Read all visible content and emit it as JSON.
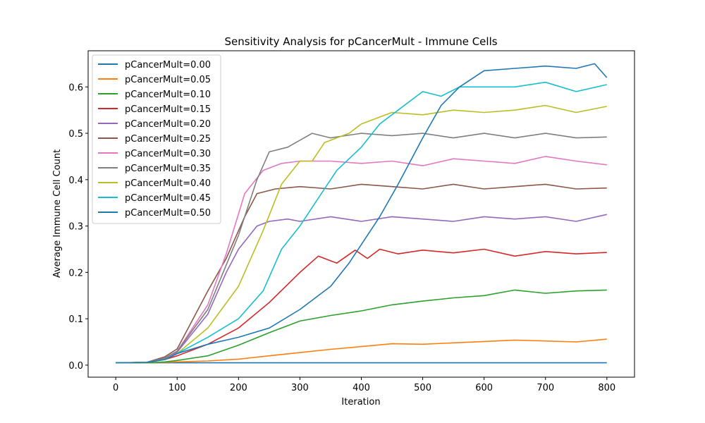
{
  "chart_data": {
    "type": "line",
    "title": "Sensitivity Analysis for pCancerMult - Immune Cells",
    "xlabel": "Iteration",
    "ylabel": "Average Immune Cell Count",
    "xlim": [
      -45,
      845
    ],
    "ylim": [
      -0.026,
      0.678
    ],
    "xticks": [
      0,
      100,
      200,
      300,
      400,
      500,
      600,
      700,
      800
    ],
    "yticks": [
      0.0,
      0.1,
      0.2,
      0.3,
      0.4,
      0.5,
      0.6
    ],
    "ytick_labels": [
      "0.0",
      "0.1",
      "0.2",
      "0.3",
      "0.4",
      "0.5",
      "0.6"
    ],
    "grid": false,
    "legend_position": "upper-left",
    "series": [
      {
        "name": "pCancerMult=0.00",
        "color": "#1f77b4",
        "x": [
          0,
          100,
          200,
          300,
          400,
          500,
          600,
          700,
          800
        ],
        "y": [
          0.005,
          0.005,
          0.005,
          0.005,
          0.005,
          0.005,
          0.005,
          0.005,
          0.005
        ]
      },
      {
        "name": "pCancerMult=0.05",
        "color": "#ff7f0e",
        "x": [
          0,
          50,
          80,
          100,
          150,
          200,
          250,
          300,
          350,
          400,
          450,
          500,
          550,
          600,
          650,
          700,
          750,
          800
        ],
        "y": [
          0.005,
          0.005,
          0.006,
          0.007,
          0.009,
          0.013,
          0.02,
          0.027,
          0.034,
          0.04,
          0.046,
          0.045,
          0.048,
          0.051,
          0.054,
          0.052,
          0.05,
          0.056
        ]
      },
      {
        "name": "pCancerMult=0.10",
        "color": "#2ca02c",
        "x": [
          0,
          50,
          80,
          100,
          150,
          200,
          250,
          300,
          350,
          400,
          450,
          500,
          550,
          600,
          650,
          700,
          750,
          800
        ],
        "y": [
          0.005,
          0.005,
          0.007,
          0.01,
          0.02,
          0.043,
          0.07,
          0.095,
          0.107,
          0.117,
          0.13,
          0.138,
          0.145,
          0.15,
          0.162,
          0.155,
          0.16,
          0.162
        ]
      },
      {
        "name": "pCancerMult=0.15",
        "color": "#d62728",
        "x": [
          0,
          50,
          80,
          100,
          150,
          200,
          250,
          300,
          330,
          360,
          390,
          410,
          430,
          460,
          500,
          550,
          600,
          650,
          700,
          750,
          800
        ],
        "y": [
          0.005,
          0.006,
          0.012,
          0.02,
          0.045,
          0.08,
          0.135,
          0.2,
          0.235,
          0.22,
          0.248,
          0.23,
          0.25,
          0.24,
          0.248,
          0.242,
          0.25,
          0.235,
          0.245,
          0.24,
          0.243
        ]
      },
      {
        "name": "pCancerMult=0.20",
        "color": "#9467bd",
        "x": [
          0,
          50,
          80,
          100,
          150,
          180,
          200,
          230,
          250,
          280,
          300,
          350,
          400,
          450,
          500,
          550,
          600,
          650,
          700,
          750,
          800
        ],
        "y": [
          0.005,
          0.006,
          0.015,
          0.028,
          0.11,
          0.2,
          0.25,
          0.3,
          0.31,
          0.315,
          0.31,
          0.32,
          0.31,
          0.32,
          0.315,
          0.31,
          0.32,
          0.315,
          0.32,
          0.31,
          0.325
        ]
      },
      {
        "name": "pCancerMult=0.25",
        "color": "#8c564b",
        "x": [
          0,
          50,
          80,
          100,
          150,
          180,
          210,
          230,
          260,
          300,
          350,
          400,
          450,
          500,
          550,
          600,
          650,
          700,
          750,
          800
        ],
        "y": [
          0.005,
          0.006,
          0.018,
          0.035,
          0.16,
          0.23,
          0.32,
          0.37,
          0.38,
          0.385,
          0.38,
          0.39,
          0.385,
          0.38,
          0.39,
          0.38,
          0.385,
          0.39,
          0.38,
          0.382
        ]
      },
      {
        "name": "pCancerMult=0.30",
        "color": "#e377c2",
        "x": [
          0,
          50,
          80,
          100,
          150,
          180,
          210,
          240,
          270,
          300,
          350,
          400,
          450,
          500,
          550,
          600,
          650,
          700,
          750,
          800
        ],
        "y": [
          0.005,
          0.006,
          0.015,
          0.03,
          0.13,
          0.24,
          0.37,
          0.42,
          0.435,
          0.44,
          0.44,
          0.435,
          0.44,
          0.43,
          0.445,
          0.44,
          0.435,
          0.45,
          0.44,
          0.432
        ]
      },
      {
        "name": "pCancerMult=0.35",
        "color": "#7f7f7f",
        "x": [
          0,
          50,
          80,
          100,
          150,
          200,
          230,
          250,
          280,
          320,
          350,
          400,
          450,
          500,
          550,
          600,
          650,
          700,
          750,
          800
        ],
        "y": [
          0.005,
          0.006,
          0.015,
          0.03,
          0.12,
          0.28,
          0.4,
          0.46,
          0.47,
          0.5,
          0.49,
          0.5,
          0.495,
          0.5,
          0.49,
          0.5,
          0.49,
          0.5,
          0.49,
          0.492
        ]
      },
      {
        "name": "pCancerMult=0.40",
        "color": "#bcbd22",
        "x": [
          0,
          50,
          80,
          100,
          150,
          200,
          240,
          270,
          300,
          320,
          340,
          360,
          380,
          400,
          450,
          500,
          550,
          600,
          650,
          700,
          750,
          800
        ],
        "y": [
          0.005,
          0.006,
          0.012,
          0.025,
          0.08,
          0.17,
          0.29,
          0.39,
          0.44,
          0.44,
          0.48,
          0.49,
          0.5,
          0.52,
          0.545,
          0.54,
          0.55,
          0.545,
          0.55,
          0.56,
          0.545,
          0.558
        ]
      },
      {
        "name": "pCancerMult=0.45",
        "color": "#17becf",
        "x": [
          0,
          50,
          80,
          100,
          150,
          200,
          240,
          270,
          300,
          330,
          360,
          400,
          430,
          460,
          500,
          530,
          560,
          600,
          650,
          700,
          750,
          800
        ],
        "y": [
          0.005,
          0.006,
          0.012,
          0.025,
          0.06,
          0.1,
          0.16,
          0.25,
          0.3,
          0.36,
          0.42,
          0.47,
          0.52,
          0.55,
          0.59,
          0.58,
          0.6,
          0.6,
          0.6,
          0.61,
          0.59,
          0.605
        ]
      },
      {
        "name": "pCancerMult=0.50",
        "color": "#1f77b4",
        "x": [
          0,
          50,
          80,
          100,
          150,
          200,
          250,
          300,
          350,
          380,
          400,
          430,
          460,
          500,
          530,
          560,
          600,
          650,
          700,
          750,
          780,
          800
        ],
        "y": [
          0.005,
          0.006,
          0.012,
          0.025,
          0.045,
          0.06,
          0.08,
          0.12,
          0.17,
          0.22,
          0.26,
          0.32,
          0.39,
          0.49,
          0.56,
          0.6,
          0.635,
          0.64,
          0.645,
          0.64,
          0.65,
          0.62
        ]
      }
    ]
  }
}
